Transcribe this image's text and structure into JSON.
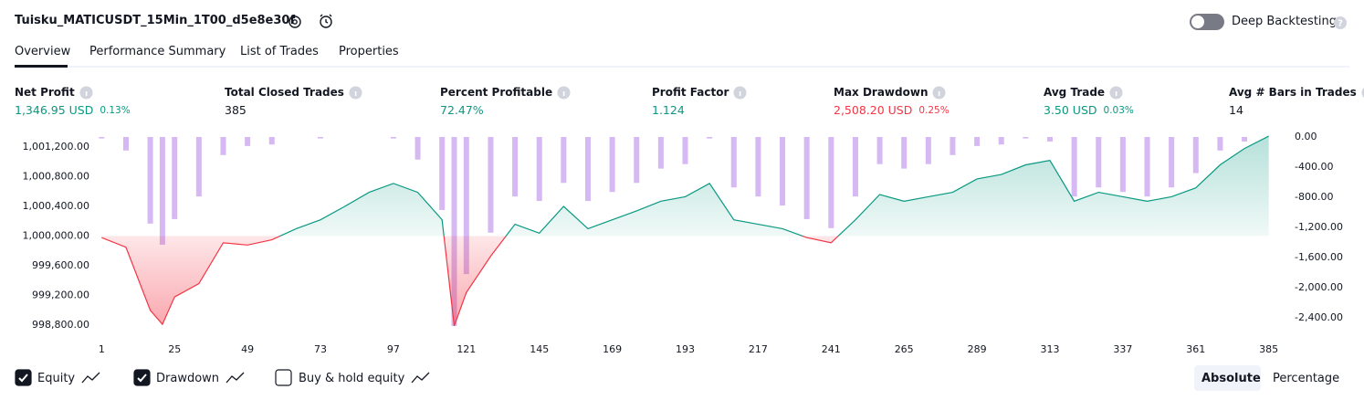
{
  "header": {
    "title": "Tuisku_MATICUSDT_15Min_1T00_d5e8e30f",
    "toggle_label": "Deep Backtesting",
    "toggle_on": false
  },
  "tabs": [
    "Overview",
    "Performance Summary",
    "List of Trades",
    "Properties"
  ],
  "metrics": [
    {
      "label": "Net Profit",
      "value": "1,346.95 USD",
      "pct": "0.13%",
      "color": "#089981"
    },
    {
      "label": "Total Closed Trades",
      "value": "385",
      "color": "#131722"
    },
    {
      "label": "Percent Profitable",
      "value": "72.47%",
      "color": "#089981"
    },
    {
      "label": "Profit Factor",
      "value": "1.124",
      "color": "#089981"
    },
    {
      "label": "Max Drawdown",
      "value": "2,508.20 USD",
      "pct": "0.25%",
      "color": "#f23645"
    },
    {
      "label": "Avg Trade",
      "value": "3.50 USD",
      "pct": "0.03%",
      "color": "#089981"
    },
    {
      "label": "Avg # Bars in Trades",
      "value": "14",
      "color": "#131722"
    }
  ],
  "chart_data": {
    "type": "line",
    "x": [
      1,
      9,
      17,
      21,
      25,
      33,
      41,
      49,
      57,
      65,
      73,
      81,
      89,
      97,
      105,
      113,
      117,
      121,
      129,
      137,
      145,
      153,
      161,
      169,
      177,
      185,
      193,
      201,
      209,
      217,
      225,
      233,
      241,
      249,
      257,
      265,
      273,
      281,
      289,
      297,
      305,
      313,
      321,
      329,
      337,
      345,
      353,
      361,
      369,
      377,
      385
    ],
    "series": [
      {
        "name": "Equity",
        "checked": true,
        "color": "#089981",
        "negative_color": "#f23645",
        "values": [
          999980,
          999850,
          999000,
          998812,
          999180,
          999360,
          999910,
          999880,
          999950,
          1000100,
          1000220,
          1000400,
          1000590,
          1000710,
          1000590,
          1000220,
          998790,
          999240,
          999730,
          1000160,
          1000040,
          1000400,
          1000100,
          1000220,
          1000340,
          1000470,
          1000530,
          1000710,
          1000220,
          1000160,
          1000100,
          999980,
          999910,
          1000220,
          1000560,
          1000470,
          1000530,
          1000590,
          1000770,
          1000830,
          1000960,
          1001020,
          1000470,
          1000590,
          1000530,
          1000470,
          1000530,
          1000650,
          1000960,
          1001180,
          1001346.95
        ]
      },
      {
        "name": "Drawdown",
        "checked": true,
        "type": "bar",
        "axis": "y2",
        "color": "#d6b8f2",
        "values": [
          -20,
          -180,
          -1150,
          -1430,
          -1090,
          -790,
          -240,
          -120,
          -100,
          0,
          -20,
          0,
          0,
          -20,
          -300,
          -970,
          -2508.2,
          -1820,
          -1270,
          -790,
          -850,
          -610,
          -850,
          -730,
          -610,
          -420,
          -360,
          -20,
          -670,
          -790,
          -910,
          -1090,
          -1210,
          -790,
          -360,
          -420,
          -360,
          -240,
          -120,
          -100,
          -20,
          -60,
          -790,
          -670,
          -730,
          -790,
          -670,
          -480,
          -180,
          -60,
          0
        ]
      }
    ],
    "extra_toggle": {
      "name": "Buy & hold equity",
      "checked": false
    },
    "xlim": [
      0,
      389
    ],
    "xticks": [
      1,
      25,
      49,
      73,
      97,
      121,
      145,
      169,
      193,
      217,
      241,
      265,
      289,
      313,
      337,
      361,
      385
    ],
    "ylim": [
      998727,
      1001360
    ],
    "yticks": [
      {
        "value": 998800,
        "label": "998,800.00"
      },
      {
        "value": 999200,
        "label": "999,200.00"
      },
      {
        "value": 999600,
        "label": "999,600.00"
      },
      {
        "value": 1000000,
        "label": "1,000,000.00"
      },
      {
        "value": 1000400,
        "label": "1,000,400.00"
      },
      {
        "value": 1000800,
        "label": "1,000,800.00"
      },
      {
        "value": 1001200,
        "label": "1,001,200.00"
      }
    ],
    "y2lim": [
      -2570,
      24
    ],
    "y2ticks": [
      {
        "value": 0,
        "label": "0.00"
      },
      {
        "value": -400,
        "label": "-400.00"
      },
      {
        "value": -800,
        "label": "-800.00"
      },
      {
        "value": -1200,
        "label": "-1,200.00"
      },
      {
        "value": -1600,
        "label": "-1,600.00"
      },
      {
        "value": -2000,
        "label": "-2,000.00"
      },
      {
        "value": -2400,
        "label": "-2,400.00"
      }
    ],
    "grid": false
  },
  "modes": [
    "Absolute",
    "Percentage"
  ]
}
